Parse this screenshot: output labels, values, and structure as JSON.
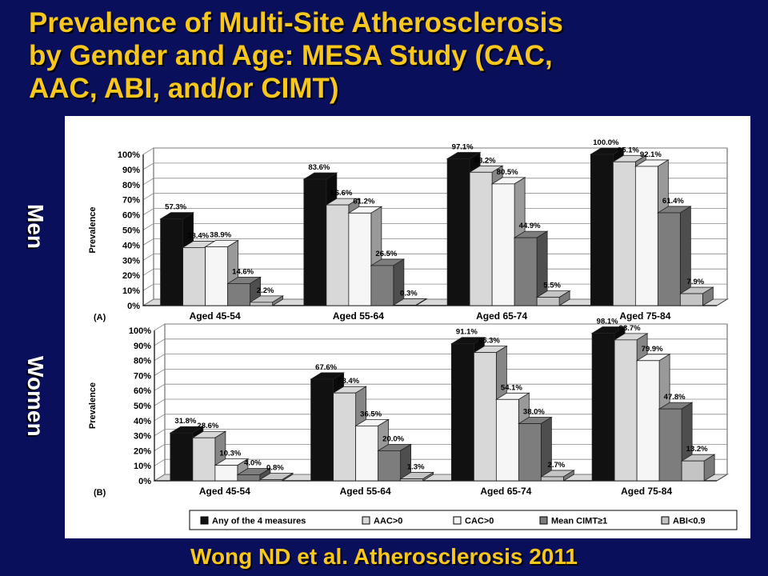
{
  "slide": {
    "title_lines": [
      "Prevalence of Multi-Site Atherosclerosis",
      "by Gender and Age: MESA Study (CAC,",
      "AAC, ABI, and/or CIMT)"
    ],
    "citation": "Wong ND et al. Atherosclerosis 2011",
    "label_men": "Men",
    "label_women": "Women"
  },
  "chart_data": [
    {
      "type": "bar",
      "panel_label": "(A)",
      "ylabel": "Prevalence",
      "ylim": [
        0,
        100
      ],
      "yticks": [
        "0%",
        "10%",
        "20%",
        "30%",
        "40%",
        "50%",
        "60%",
        "70%",
        "80%",
        "90%",
        "100%"
      ],
      "categories": [
        "Aged 45-54",
        "Aged 55-64",
        "Aged 65-74",
        "Aged 75-84"
      ],
      "series": [
        {
          "name": "Any of the 4 measures",
          "values": [
            57.3,
            83.6,
            97.1,
            100.0
          ],
          "labels": [
            "57.3%",
            "83.6%",
            "97.1%",
            "100.0%"
          ],
          "color": "#111111"
        },
        {
          "name": "AAC>0",
          "values": [
            38.4,
            66.6,
            88.2,
            95.1
          ],
          "labels": [
            "38.4%",
            "66.6%",
            "88.2%",
            "95.1%"
          ],
          "color": "#d8d8d8"
        },
        {
          "name": "CAC>0",
          "values": [
            38.9,
            61.2,
            80.5,
            92.1
          ],
          "labels": [
            "38.9%",
            "61.2%",
            "80.5%",
            "92.1%"
          ],
          "color": "#f6f6f6"
        },
        {
          "name": "Mean CIMT≥1",
          "values": [
            14.6,
            26.5,
            44.9,
            61.4
          ],
          "labels": [
            "14.6%",
            "26.5%",
            "44.9%",
            "61.4%"
          ],
          "color": "#7d7d7d"
        },
        {
          "name": "ABI<0.9",
          "values": [
            2.2,
            0.3,
            5.5,
            7.9
          ],
          "labels": [
            "2.2%",
            "0.3%",
            "5.5%",
            "7.9%"
          ],
          "color": "#c4c4c4"
        }
      ]
    },
    {
      "type": "bar",
      "panel_label": "(B)",
      "ylabel": "Prevalence",
      "ylim": [
        0,
        100
      ],
      "yticks": [
        "0%",
        "10%",
        "20%",
        "30%",
        "40%",
        "50%",
        "60%",
        "70%",
        "80%",
        "90%",
        "100%"
      ],
      "categories": [
        "Aged 45-54",
        "Aged 55-64",
        "Aged 65-74",
        "Aged 75-84"
      ],
      "series": [
        {
          "name": "Any of the 4 measures",
          "values": [
            31.8,
            67.6,
            91.1,
            98.1
          ],
          "labels": [
            "31.8%",
            "67.6%",
            "91.1%",
            "98.1%"
          ],
          "color": "#111111"
        },
        {
          "name": "AAC>0",
          "values": [
            28.6,
            58.4,
            85.3,
            93.7
          ],
          "labels": [
            "28.6%",
            "58.4%",
            "85.3%",
            "93.7%"
          ],
          "color": "#d8d8d8"
        },
        {
          "name": "CAC>0",
          "values": [
            10.3,
            36.5,
            54.1,
            79.9
          ],
          "labels": [
            "10.3%",
            "36.5%",
            "54.1%",
            "79.9%"
          ],
          "color": "#f6f6f6"
        },
        {
          "name": "Mean CIMT≥1",
          "values": [
            4.0,
            20.0,
            38.0,
            47.8
          ],
          "labels": [
            "4.0%",
            "20.0%",
            "38.0%",
            "47.8%"
          ],
          "color": "#7d7d7d"
        },
        {
          "name": "ABI<0.9",
          "values": [
            0.8,
            1.3,
            2.7,
            13.2
          ],
          "labels": [
            "0.8%",
            "1.3%",
            "2.7%",
            "13.2%"
          ],
          "color": "#c4c4c4"
        }
      ]
    }
  ],
  "legend": [
    {
      "name": "Any of the 4 measures",
      "color": "#111111"
    },
    {
      "name": "AAC>0",
      "color": "#d8d8d8"
    },
    {
      "name": "CAC>0",
      "color": "#f6f6f6"
    },
    {
      "name": "Mean CIMT≥1",
      "color": "#7d7d7d"
    },
    {
      "name": "ABI<0.9",
      "color": "#c4c4c4"
    }
  ]
}
